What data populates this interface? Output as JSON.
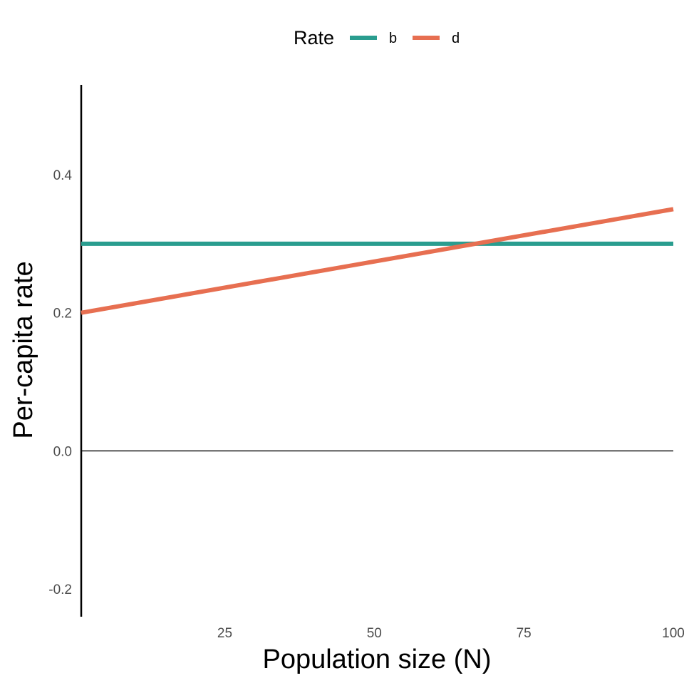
{
  "chart_data": {
    "type": "line",
    "title": "",
    "xlabel": "Population size (N)",
    "ylabel": "Per-capita rate",
    "xlim": [
      1,
      100
    ],
    "ylim": [
      -0.24,
      0.53
    ],
    "x_ticks": [
      25,
      50,
      75,
      100
    ],
    "x_tick_labels": [
      "25",
      "50",
      "75",
      "100"
    ],
    "y_ticks": [
      -0.2,
      0.0,
      0.2,
      0.4
    ],
    "y_tick_labels": [
      "-0.2",
      "0.0",
      "0.2",
      "0.4"
    ],
    "grid": false,
    "reference_line_y": 0,
    "legend": {
      "title": "Rate",
      "position": "top",
      "entries": [
        "b",
        "d"
      ]
    },
    "series": [
      {
        "name": "b",
        "color": "#2A9D8F",
        "x": [
          1,
          100
        ],
        "y": [
          0.3,
          0.3
        ]
      },
      {
        "name": "d",
        "color": "#E76F51",
        "x": [
          1,
          100
        ],
        "y": [
          0.2,
          0.35
        ]
      }
    ]
  }
}
